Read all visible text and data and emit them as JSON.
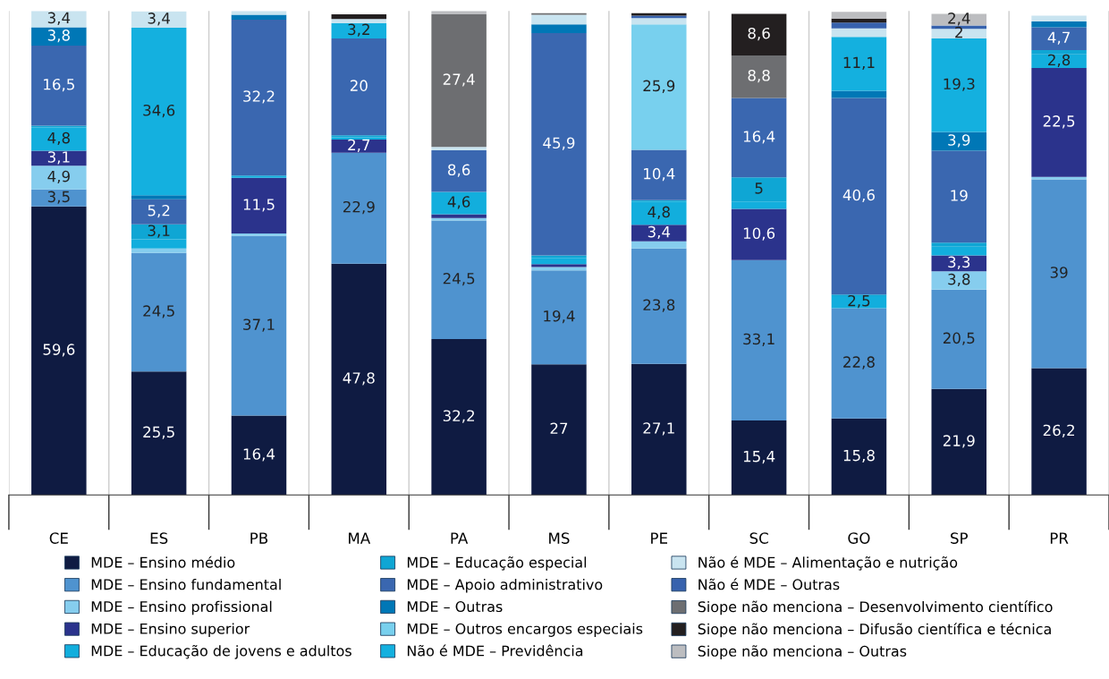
{
  "chart_data": {
    "type": "bar",
    "stacked": true,
    "categories": [
      "CE",
      "ES",
      "PB",
      "MA",
      "PA",
      "MS",
      "PE",
      "SC",
      "GO",
      "SP",
      "PR"
    ],
    "ylim": [
      0,
      100
    ],
    "tick_labels": "x",
    "grid": "x",
    "legend": "bottom",
    "series": [
      {
        "name": "MDE – Ensino médio",
        "color": "#0f1b42",
        "values": [
          59.6,
          25.5,
          16.4,
          47.8,
          32.2,
          27,
          27.1,
          15.4,
          15.8,
          21.9,
          26.2
        ],
        "value_labels": [
          "59,6",
          "25,5",
          "16,4",
          "47,8",
          "32,2",
          "27",
          "27,1",
          "15,4",
          "15,8",
          "21,9",
          "26,2"
        ]
      },
      {
        "name": "MDE – Ensino fundamental",
        "color": "#4f93cf",
        "values": [
          3.5,
          24.5,
          37.1,
          22.9,
          24.5,
          19.4,
          23.8,
          33.1,
          22.8,
          20.5,
          39
        ],
        "value_labels": [
          "3,5",
          "24,5",
          "37,1",
          "22,9",
          "24,5",
          "19,4",
          "23,8",
          "33,1",
          "22,8",
          "20,5",
          "39"
        ]
      },
      {
        "name": "MDE – Ensino profissional",
        "color": "#86cdee",
        "values": [
          4.9,
          0.9,
          0.5,
          null,
          0.5,
          0.7,
          1.5,
          null,
          null,
          3.8,
          0.5
        ],
        "value_labels": [
          "4,9",
          null,
          null,
          null,
          null,
          null,
          null,
          null,
          null,
          "3,8",
          null
        ]
      },
      {
        "name": "MDE – Ensino superior",
        "color": "#2b338c",
        "values": [
          3.1,
          null,
          11.5,
          2.7,
          0.8,
          0.6,
          3.4,
          10.6,
          null,
          3.3,
          22.5
        ],
        "value_labels": [
          "3,1",
          null,
          "11,5",
          "2,7",
          null,
          null,
          "3,4",
          "10,6",
          null,
          "3,3",
          "22,5"
        ]
      },
      {
        "name": "MDE – Educação de jovens e adultos",
        "color": "#12aedd",
        "values": [
          4.8,
          1.9,
          0.5,
          0.5,
          4.6,
          1.3,
          4.8,
          1.5,
          2.5,
          1.8,
          2.8
        ],
        "value_labels": [
          "4,8",
          null,
          null,
          null,
          "4,6",
          null,
          "4,8",
          null,
          "2,5",
          null,
          "2,8"
        ]
      },
      {
        "name": "MDE – Educação especial",
        "color": "#0fa6d4",
        "values": [
          0.4,
          3.1,
          null,
          0.4,
          null,
          0.5,
          0.3,
          5,
          0.3,
          0.8,
          0.9
        ],
        "value_labels": [
          null,
          "3,1",
          null,
          null,
          null,
          null,
          null,
          "5",
          null,
          null,
          null
        ]
      },
      {
        "name": "MDE – Apoio administrativo",
        "color": "#3a67b0",
        "values": [
          16.5,
          5.2,
          32.2,
          20,
          8.6,
          45.9,
          10.4,
          16.4,
          40.6,
          19,
          4.7
        ],
        "value_labels": [
          "16,5",
          "5,2",
          "32,2",
          "20",
          "8,6",
          "45,9",
          "10,4",
          "16,4",
          "40,6",
          "19",
          "4,7"
        ]
      },
      {
        "name": "MDE – Outras",
        "color": "#0077b6",
        "values": [
          3.8,
          0.8,
          1.0,
          null,
          null,
          1.8,
          null,
          null,
          1.5,
          3.9,
          1.2
        ],
        "value_labels": [
          "3,8",
          null,
          null,
          null,
          null,
          null,
          null,
          null,
          null,
          "3,9",
          null
        ]
      },
      {
        "name": "MDE – Outros encargos especiais",
        "color": "#78d0ee",
        "values": [
          null,
          null,
          null,
          null,
          null,
          null,
          25.9,
          null,
          null,
          null,
          null
        ],
        "value_labels": [
          null,
          null,
          null,
          null,
          null,
          null,
          "25,9",
          null,
          null,
          null,
          null
        ]
      },
      {
        "name": "Não é MDE – Previdência",
        "color": "#14b0df",
        "values": [
          null,
          34.6,
          null,
          3.2,
          null,
          null,
          null,
          null,
          11.1,
          19.3,
          null
        ],
        "value_labels": [
          null,
          "34,6",
          null,
          "3,2",
          null,
          null,
          null,
          null,
          "11,1",
          "19,3",
          null
        ]
      },
      {
        "name": "Não é MDE – Alimentação e nutrição",
        "color": "#c9e4f0",
        "values": [
          3.4,
          3.4,
          0.8,
          0.8,
          0.7,
          2.0,
          1.3,
          null,
          1.8,
          2,
          1.2
        ],
        "value_labels": [
          "3,4",
          "3,4",
          null,
          null,
          null,
          null,
          null,
          null,
          null,
          "2",
          null
        ]
      },
      {
        "name": "Não é MDE – Outras",
        "color": "#3762ad",
        "values": [
          null,
          null,
          null,
          null,
          null,
          null,
          0.5,
          null,
          1.2,
          0.7,
          null
        ],
        "value_labels": [
          null,
          null,
          null,
          null,
          null,
          null,
          null,
          null,
          null,
          null,
          null
        ]
      },
      {
        "name": "Siope não menciona – Desenvolvimento científico",
        "color": "#6d6e71",
        "values": [
          null,
          null,
          null,
          null,
          27.4,
          0.3,
          null,
          8.8,
          null,
          null,
          null
        ],
        "value_labels": [
          null,
          null,
          null,
          null,
          "27,4",
          null,
          null,
          "8,8",
          null,
          null,
          null
        ]
      },
      {
        "name": "Siope não menciona – Difusão científica e técnica",
        "color": "#231f20",
        "values": [
          null,
          null,
          null,
          1.0,
          null,
          null,
          0.5,
          8.6,
          0.8,
          null,
          null
        ],
        "value_labels": [
          null,
          null,
          null,
          null,
          null,
          null,
          null,
          "8,6",
          null,
          null,
          null
        ]
      },
      {
        "name": "Siope não menciona – Outras",
        "color": "#bcbdc0",
        "values": [
          null,
          null,
          null,
          null,
          0.7,
          null,
          null,
          null,
          1.4,
          2.4,
          null
        ],
        "value_labels": [
          null,
          null,
          null,
          null,
          null,
          null,
          null,
          null,
          null,
          "2,4",
          null
        ]
      }
    ]
  }
}
